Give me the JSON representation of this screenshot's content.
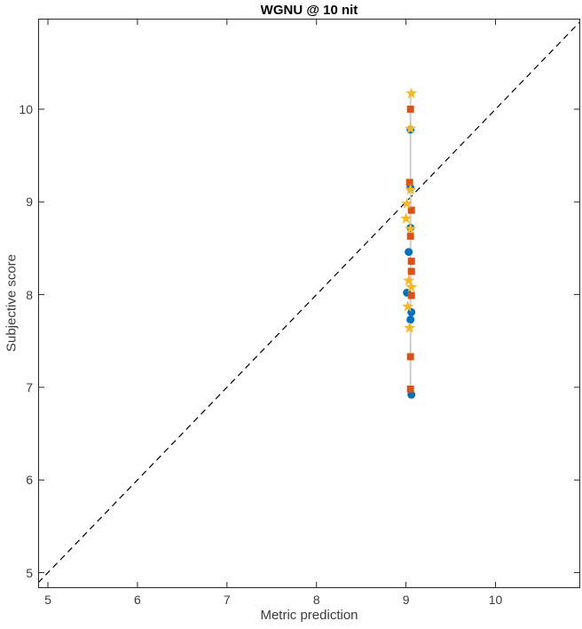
{
  "figure": {
    "title": "WGNU @ 10 nit",
    "xlabel": "Metric prediction",
    "ylabel": "Subjective score"
  },
  "chart_data": {
    "type": "scatter",
    "title": "WGNU @ 10 nit",
    "xlabel": "Metric prediction",
    "ylabel": "Subjective score",
    "xlim": [
      4.891,
      10.946
    ],
    "ylim": [
      4.833,
      10.977
    ],
    "xticks": [
      5,
      6,
      7,
      8,
      9,
      10
    ],
    "yticks": [
      5,
      6,
      7,
      8,
      9,
      10
    ],
    "grid": false,
    "legend": "none",
    "box": true,
    "tick_dir": "in",
    "axis_color": "#262626",
    "reference_line": {
      "description": "identity line y = x",
      "style": "dashed",
      "color": "#000000",
      "from": [
        4.891,
        4.891
      ],
      "to": [
        10.946,
        10.946
      ]
    },
    "connector_line": {
      "description": "vertical gray line joining all cluster points",
      "x": 9.05,
      "y_from": 6.92,
      "y_to": 10.17,
      "color": "#cccccc",
      "width": 2
    },
    "series": [
      {
        "name": "circle-markers",
        "marker": "circle",
        "color": "#0072BD",
        "points": [
          [
            9.05,
            9.78
          ],
          [
            9.05,
            9.15
          ],
          [
            9.05,
            8.72
          ],
          [
            9.03,
            8.46
          ],
          [
            9.01,
            8.02
          ],
          [
            9.06,
            7.81
          ],
          [
            9.05,
            7.73
          ],
          [
            9.06,
            6.92
          ]
        ]
      },
      {
        "name": "square-markers",
        "marker": "square",
        "color": "#D95319",
        "points": [
          [
            9.05,
            10.0
          ],
          [
            9.04,
            9.21
          ],
          [
            9.06,
            8.91
          ],
          [
            9.05,
            8.63
          ],
          [
            9.06,
            8.36
          ],
          [
            9.06,
            8.25
          ],
          [
            9.06,
            7.99
          ],
          [
            9.05,
            7.33
          ],
          [
            9.05,
            6.98
          ]
        ]
      },
      {
        "name": "star-markers",
        "marker": "pentagram",
        "color": "#F5B82A",
        "points": [
          [
            9.06,
            10.17
          ],
          [
            9.05,
            9.79
          ],
          [
            9.05,
            9.13
          ],
          [
            9.01,
            8.98
          ],
          [
            9.0,
            8.82
          ],
          [
            9.05,
            8.71
          ],
          [
            9.03,
            8.15
          ],
          [
            9.06,
            8.08
          ],
          [
            9.02,
            7.87
          ],
          [
            9.04,
            7.64
          ]
        ]
      }
    ]
  }
}
